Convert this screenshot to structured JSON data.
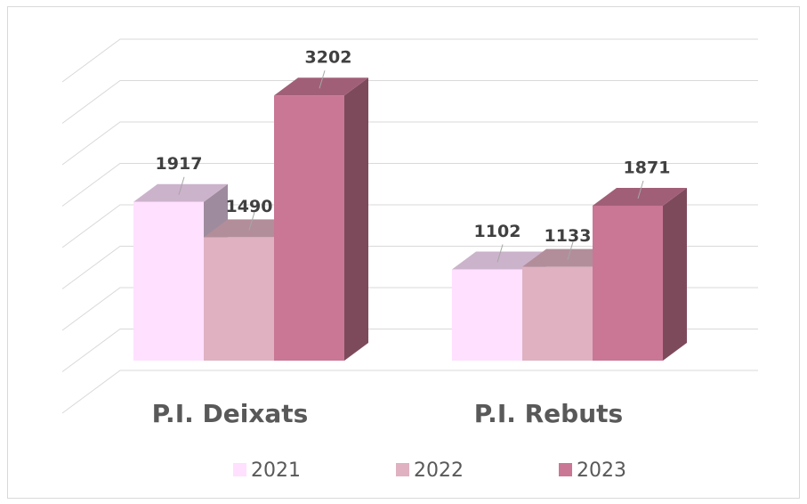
{
  "chart_data": {
    "type": "bar3d",
    "categories": [
      "P.I. Deixats",
      "P.I. Rebuts"
    ],
    "series": [
      {
        "name": "2021",
        "color": "#ffe0ff",
        "values": [
          1917,
          1102
        ]
      },
      {
        "name": "2022",
        "color": "#dfb1c1",
        "values": [
          1490,
          1133
        ]
      },
      {
        "name": "2023",
        "color": "#c97795",
        "values": [
          3202,
          1871
        ]
      }
    ],
    "ylim": [
      0,
      4000
    ],
    "yticks": [
      0,
      500,
      1000,
      1500,
      2000,
      2500,
      3000,
      3500,
      4000
    ],
    "grid": true,
    "legend": "bottom"
  }
}
